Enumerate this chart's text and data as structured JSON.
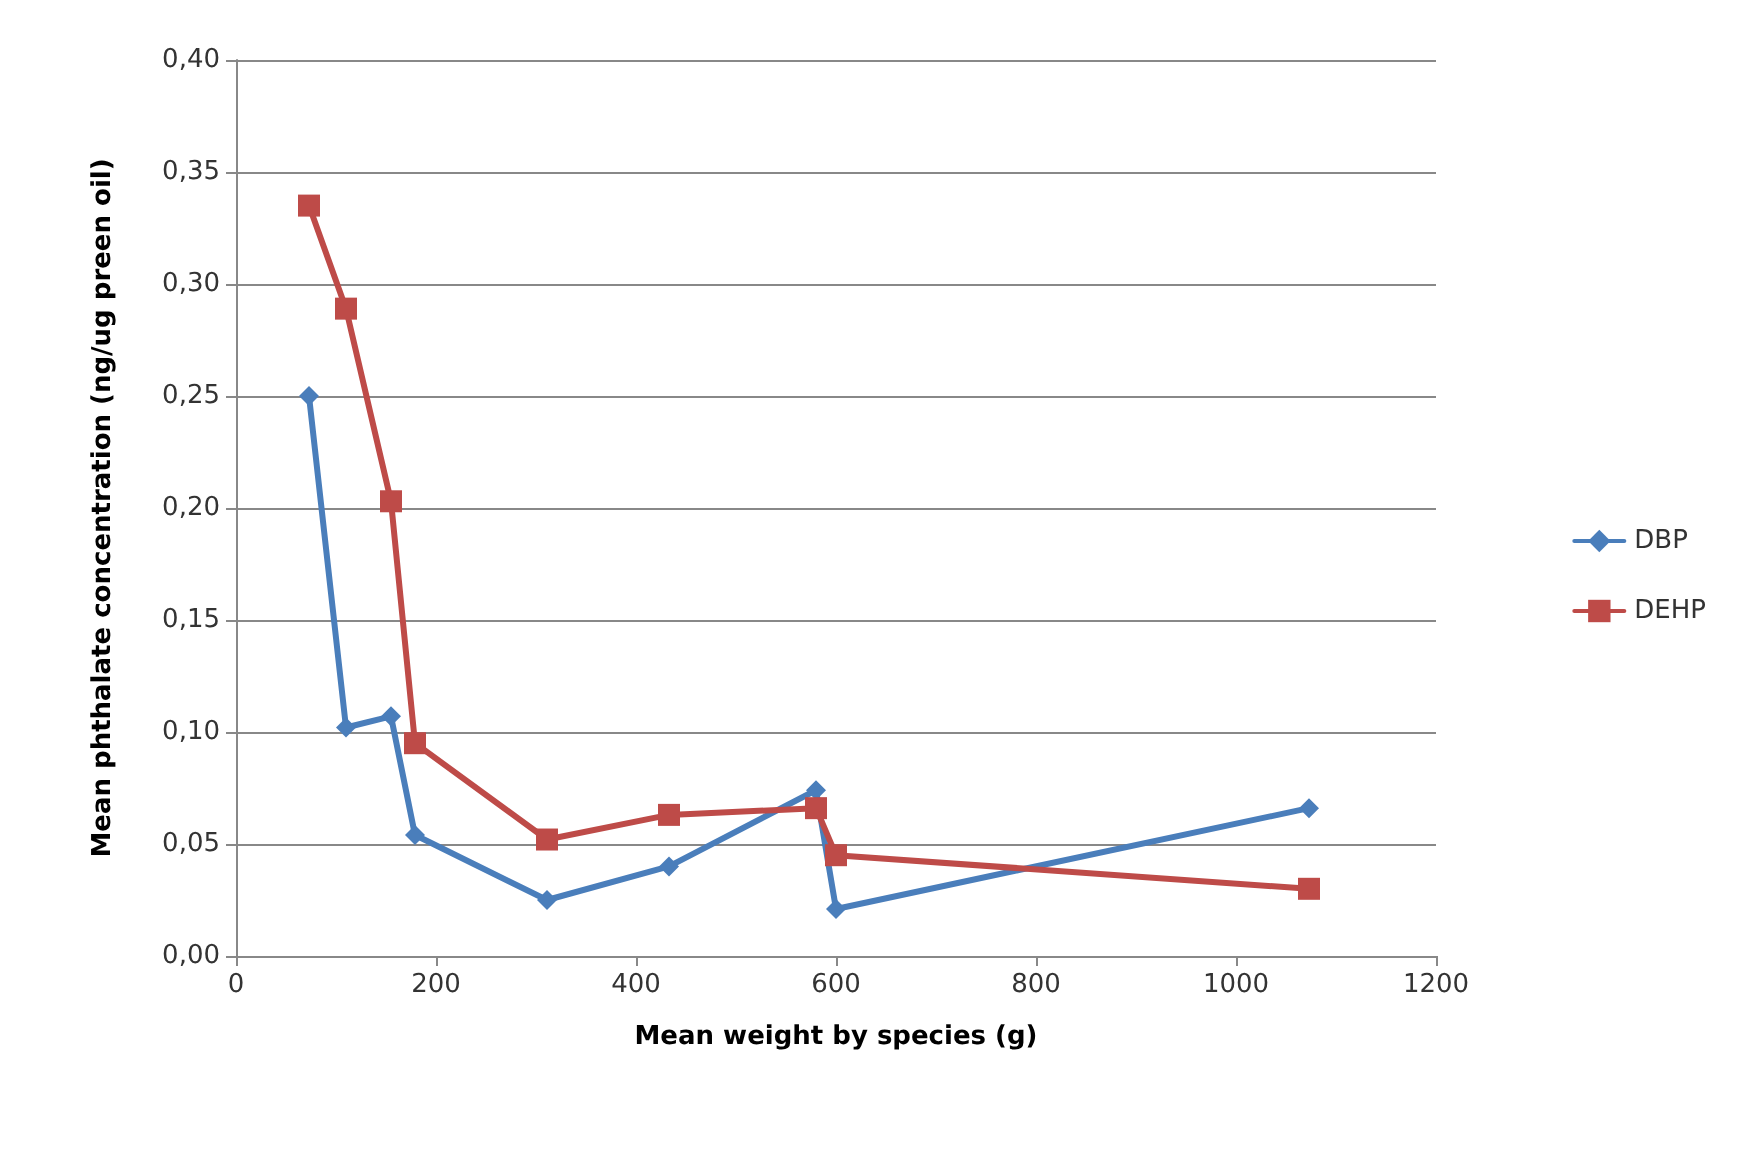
{
  "chart_data": {
    "type": "line",
    "xlabel": "Mean weight by species (g)",
    "ylabel": "Mean phthalate concentration (ng/ug preen oil)",
    "x": [
      73,
      110,
      155,
      179,
      311,
      433,
      580,
      600,
      1073
    ],
    "series": [
      {
        "name": "DBP",
        "color": "#4a7ebb",
        "marker": "diamond",
        "values": [
          0.25,
          0.102,
          0.107,
          0.054,
          0.025,
          0.04,
          0.074,
          0.021,
          0.066
        ]
      },
      {
        "name": "DEHP",
        "color": "#be4b48",
        "marker": "square",
        "values": [
          0.335,
          0.289,
          0.203,
          0.095,
          0.052,
          0.063,
          0.066,
          0.045,
          0.03
        ]
      }
    ],
    "xlim": [
      0,
      1200
    ],
    "xticks": [
      0,
      200,
      400,
      600,
      800,
      1000,
      1200
    ],
    "ylim": [
      0,
      0.4
    ],
    "yticks": [
      {
        "value": 0,
        "label": "0,00"
      },
      {
        "value": 0.05,
        "label": "0,05"
      },
      {
        "value": 0.1,
        "label": "0,10"
      },
      {
        "value": 0.15,
        "label": "0,15"
      },
      {
        "value": 0.2,
        "label": "0,20"
      },
      {
        "value": 0.25,
        "label": "0,25"
      },
      {
        "value": 0.3,
        "label": "0,30"
      },
      {
        "value": 0.35,
        "label": "0,35"
      },
      {
        "value": 0.4,
        "label": "0,40"
      }
    ],
    "grid": "y",
    "legend": "right",
    "line_style": "solid"
  }
}
